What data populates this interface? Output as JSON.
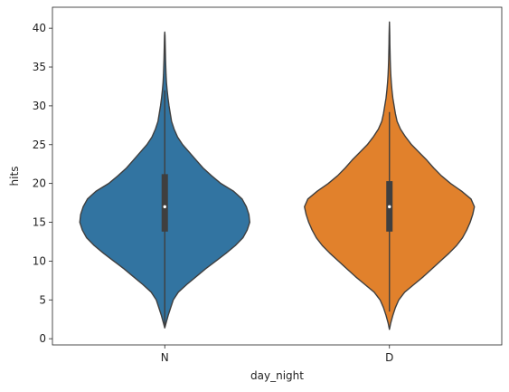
{
  "chart_data": {
    "type": "violin",
    "title": "",
    "xlabel": "day_night",
    "ylabel": "hits",
    "ylim": [
      -0.8,
      42.7
    ],
    "yticks": [
      0,
      5,
      10,
      15,
      20,
      25,
      30,
      35,
      40
    ],
    "grid": false,
    "legend": "none",
    "categories": [
      "N",
      "D"
    ],
    "colors": [
      "#3274a1",
      "#e1812c"
    ],
    "violins": [
      {
        "category": "N",
        "min": 1.4,
        "max": 39.5,
        "q1": 13.8,
        "median": 17.0,
        "q3": 21.2,
        "whisker_low": 1.4,
        "whisker_high": 32.0,
        "density": [
          [
            1.4,
            0.0
          ],
          [
            2.0,
            0.015
          ],
          [
            3.0,
            0.04
          ],
          [
            4.0,
            0.07
          ],
          [
            5.0,
            0.1
          ],
          [
            6.0,
            0.16
          ],
          [
            7.0,
            0.26
          ],
          [
            8.0,
            0.37
          ],
          [
            9.0,
            0.48
          ],
          [
            10.0,
            0.6
          ],
          [
            11.0,
            0.72
          ],
          [
            12.0,
            0.83
          ],
          [
            13.0,
            0.92
          ],
          [
            14.0,
            0.97
          ],
          [
            15.0,
            1.0
          ],
          [
            16.0,
            0.99
          ],
          [
            17.0,
            0.96
          ],
          [
            18.0,
            0.91
          ],
          [
            19.0,
            0.81
          ],
          [
            20.0,
            0.66
          ],
          [
            21.0,
            0.55
          ],
          [
            22.0,
            0.45
          ],
          [
            23.0,
            0.37
          ],
          [
            24.0,
            0.29
          ],
          [
            25.0,
            0.21
          ],
          [
            26.0,
            0.15
          ],
          [
            27.0,
            0.11
          ],
          [
            28.0,
            0.08
          ],
          [
            29.0,
            0.065
          ],
          [
            30.0,
            0.05
          ],
          [
            31.0,
            0.038
          ],
          [
            32.0,
            0.028
          ],
          [
            33.0,
            0.02
          ],
          [
            34.0,
            0.015
          ],
          [
            35.0,
            0.012
          ],
          [
            36.0,
            0.009
          ],
          [
            37.0,
            0.007
          ],
          [
            38.0,
            0.005
          ],
          [
            39.0,
            0.003
          ],
          [
            39.5,
            0.0
          ]
        ]
      },
      {
        "category": "D",
        "min": 1.2,
        "max": 40.8,
        "q1": 13.8,
        "median": 17.0,
        "q3": 20.3,
        "whisker_low": 3.5,
        "whisker_high": 29.2,
        "density": [
          [
            1.2,
            0.0
          ],
          [
            2.0,
            0.015
          ],
          [
            3.0,
            0.04
          ],
          [
            4.0,
            0.07
          ],
          [
            5.0,
            0.11
          ],
          [
            6.0,
            0.18
          ],
          [
            7.0,
            0.29
          ],
          [
            8.0,
            0.4
          ],
          [
            9.0,
            0.5
          ],
          [
            10.0,
            0.6
          ],
          [
            11.0,
            0.7
          ],
          [
            12.0,
            0.79
          ],
          [
            13.0,
            0.86
          ],
          [
            14.0,
            0.91
          ],
          [
            15.0,
            0.95
          ],
          [
            16.0,
            0.98
          ],
          [
            17.0,
            1.0
          ],
          [
            18.0,
            0.96
          ],
          [
            19.0,
            0.85
          ],
          [
            20.0,
            0.72
          ],
          [
            21.0,
            0.61
          ],
          [
            22.0,
            0.52
          ],
          [
            23.0,
            0.44
          ],
          [
            24.0,
            0.35
          ],
          [
            25.0,
            0.26
          ],
          [
            26.0,
            0.19
          ],
          [
            27.0,
            0.13
          ],
          [
            28.0,
            0.09
          ],
          [
            29.0,
            0.07
          ],
          [
            30.0,
            0.055
          ],
          [
            31.0,
            0.04
          ],
          [
            32.0,
            0.03
          ],
          [
            33.0,
            0.022
          ],
          [
            34.0,
            0.016
          ],
          [
            35.0,
            0.012
          ],
          [
            36.0,
            0.009
          ],
          [
            37.0,
            0.007
          ],
          [
            38.0,
            0.005
          ],
          [
            39.0,
            0.004
          ],
          [
            40.0,
            0.002
          ],
          [
            40.8,
            0.0
          ]
        ]
      }
    ]
  }
}
